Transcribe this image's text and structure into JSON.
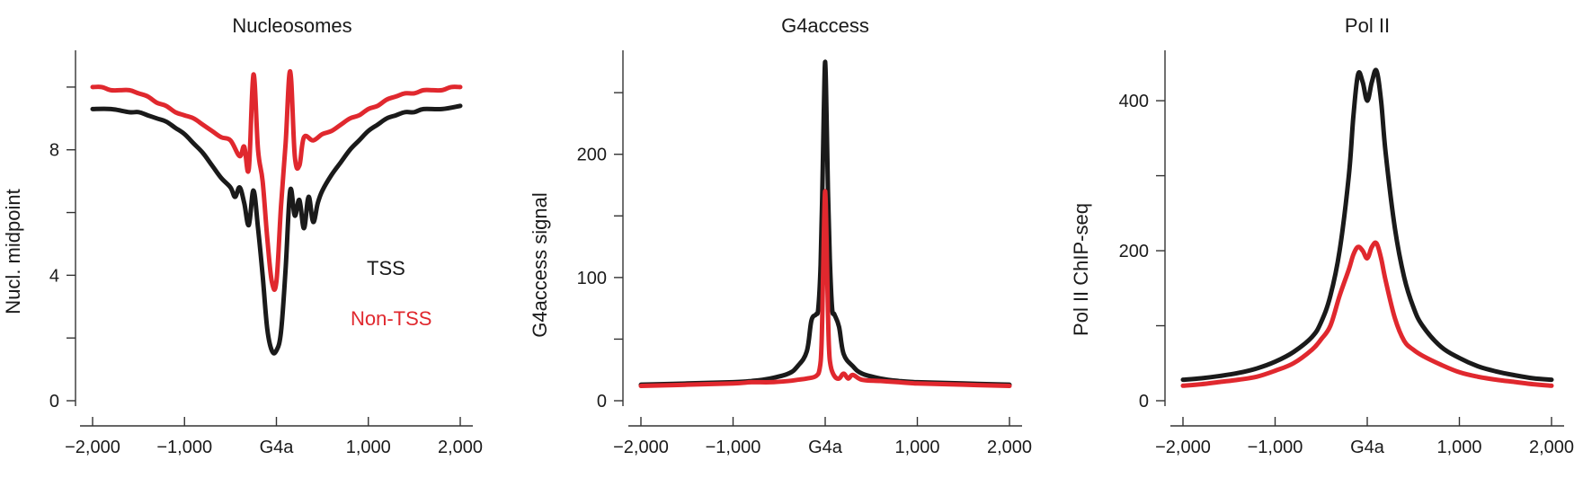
{
  "colors": {
    "tss": "#1a1a1a",
    "non_tss": "#e0282e",
    "axis": "#333333"
  },
  "chart_data": [
    {
      "type": "line",
      "title": "Nucleosomes",
      "xlabel": "",
      "ylabel": "Nucl. midpoint",
      "xlim": [
        -2000,
        2000
      ],
      "ylim": [
        0,
        11
      ],
      "x_ticks": [
        -2000,
        -1000,
        0,
        1000,
        2000
      ],
      "x_tick_labels": [
        "−2,000",
        "−1,000",
        "G4a",
        "1,000",
        "2,000"
      ],
      "y_ticks": [
        0,
        2,
        4,
        6,
        8,
        10
      ],
      "y_tick_labels": [
        "0",
        "",
        "4",
        "",
        "8",
        ""
      ],
      "legend": [
        {
          "label": "TSS",
          "color": "#1a1a1a"
        },
        {
          "label": "Non-TSS",
          "color": "#e0282e"
        }
      ],
      "series": [
        {
          "name": "TSS",
          "color": "#1a1a1a",
          "x": [
            -2000,
            -1800,
            -1600,
            -1500,
            -1400,
            -1300,
            -1200,
            -1100,
            -1000,
            -900,
            -800,
            -700,
            -600,
            -500,
            -450,
            -400,
            -350,
            -300,
            -250,
            -200,
            -150,
            -100,
            -50,
            0,
            50,
            100,
            150,
            200,
            250,
            300,
            350,
            400,
            450,
            500,
            600,
            700,
            800,
            900,
            1000,
            1100,
            1200,
            1300,
            1400,
            1500,
            1600,
            1800,
            2000
          ],
          "y": [
            9.3,
            9.3,
            9.2,
            9.2,
            9.1,
            9.0,
            8.9,
            8.7,
            8.5,
            8.2,
            7.9,
            7.5,
            7.1,
            6.8,
            6.5,
            6.8,
            6.3,
            5.6,
            6.7,
            5.5,
            4.0,
            2.3,
            1.6,
            1.6,
            2.2,
            4.2,
            6.7,
            5.9,
            6.4,
            5.5,
            6.5,
            5.7,
            6.3,
            6.7,
            7.2,
            7.6,
            8.0,
            8.3,
            8.6,
            8.8,
            9.0,
            9.1,
            9.2,
            9.2,
            9.3,
            9.3,
            9.4
          ]
        },
        {
          "name": "Non-TSS",
          "color": "#e0282e",
          "x": [
            -2000,
            -1900,
            -1800,
            -1700,
            -1600,
            -1500,
            -1400,
            -1300,
            -1200,
            -1100,
            -1000,
            -900,
            -800,
            -700,
            -600,
            -500,
            -400,
            -350,
            -300,
            -250,
            -200,
            -150,
            -100,
            -50,
            0,
            50,
            100,
            150,
            200,
            250,
            300,
            400,
            500,
            600,
            700,
            800,
            900,
            1000,
            1100,
            1200,
            1300,
            1400,
            1500,
            1600,
            1700,
            1800,
            1900,
            2000
          ],
          "y": [
            10.0,
            10.0,
            9.9,
            9.9,
            9.9,
            9.8,
            9.7,
            9.5,
            9.4,
            9.2,
            9.1,
            9.0,
            8.8,
            8.6,
            8.4,
            8.3,
            7.8,
            8.1,
            7.4,
            10.4,
            8.0,
            7.0,
            5.2,
            3.8,
            3.8,
            6.2,
            8.2,
            10.5,
            7.8,
            7.5,
            8.4,
            8.3,
            8.5,
            8.6,
            8.8,
            9.0,
            9.1,
            9.3,
            9.4,
            9.6,
            9.7,
            9.8,
            9.8,
            9.9,
            9.9,
            9.9,
            10.0,
            10.0
          ]
        }
      ]
    },
    {
      "type": "line",
      "title": "G4access",
      "xlabel": "",
      "ylabel": "G4access signal",
      "xlim": [
        -2000,
        2000
      ],
      "ylim": [
        0,
        280
      ],
      "x_ticks": [
        -2000,
        -1000,
        0,
        1000,
        2000
      ],
      "x_tick_labels": [
        "−2,000",
        "−1,000",
        "G4a",
        "1,000",
        "2,000"
      ],
      "y_ticks": [
        0,
        50,
        100,
        150,
        200,
        250
      ],
      "y_tick_labels": [
        "0",
        "",
        "100",
        "",
        "200",
        ""
      ],
      "series": [
        {
          "name": "TSS",
          "color": "#1a1a1a",
          "x": [
            -2000,
            -1500,
            -1000,
            -800,
            -600,
            -400,
            -300,
            -200,
            -150,
            -100,
            -75,
            -50,
            -30,
            -15,
            0,
            15,
            30,
            50,
            75,
            100,
            150,
            200,
            300,
            400,
            600,
            800,
            1000,
            1500,
            2000
          ],
          "y": [
            13,
            14,
            15,
            16,
            18,
            22,
            28,
            40,
            65,
            70,
            75,
            110,
            175,
            235,
            275,
            230,
            170,
            115,
            75,
            70,
            60,
            38,
            28,
            22,
            18,
            16,
            15,
            14,
            13
          ]
        },
        {
          "name": "Non-TSS",
          "color": "#e0282e",
          "x": [
            -2000,
            -1500,
            -1000,
            -800,
            -600,
            -400,
            -300,
            -200,
            -100,
            -60,
            -40,
            -25,
            -12,
            0,
            12,
            25,
            40,
            60,
            100,
            150,
            200,
            250,
            300,
            400,
            600,
            800,
            1000,
            1500,
            2000
          ],
          "y": [
            12,
            13,
            14,
            15,
            15,
            16,
            17,
            18,
            20,
            26,
            45,
            95,
            145,
            170,
            140,
            90,
            45,
            28,
            20,
            18,
            22,
            18,
            21,
            17,
            16,
            15,
            14,
            13,
            12
          ]
        }
      ]
    },
    {
      "type": "line",
      "title": "Pol II",
      "xlabel": "",
      "ylabel": "Pol II ChIP-seq",
      "xlim": [
        -2000,
        2000
      ],
      "ylim": [
        0,
        460
      ],
      "x_ticks": [
        -2000,
        -1000,
        0,
        1000,
        2000
      ],
      "x_tick_labels": [
        "−2,000",
        "−1,000",
        "G4a",
        1000,
        "2,000"
      ],
      "y_ticks": [
        0,
        100,
        200,
        300,
        400
      ],
      "y_tick_labels": [
        "0",
        "",
        "200",
        "",
        "400"
      ],
      "series": [
        {
          "name": "TSS",
          "color": "#1a1a1a",
          "x": [
            -2000,
            -1800,
            -1600,
            -1400,
            -1200,
            -1000,
            -800,
            -600,
            -500,
            -400,
            -300,
            -200,
            -150,
            -100,
            -50,
            0,
            50,
            100,
            150,
            200,
            300,
            400,
            500,
            600,
            800,
            1000,
            1200,
            1400,
            1600,
            1800,
            2000
          ],
          "y": [
            28,
            30,
            33,
            37,
            43,
            52,
            65,
            85,
            105,
            140,
            200,
            300,
            380,
            435,
            425,
            400,
            425,
            440,
            400,
            330,
            230,
            165,
            125,
            100,
            72,
            57,
            46,
            39,
            34,
            30,
            28
          ]
        },
        {
          "name": "Non-TSS",
          "color": "#e0282e",
          "x": [
            -2000,
            -1800,
            -1600,
            -1400,
            -1200,
            -1000,
            -800,
            -600,
            -500,
            -400,
            -300,
            -200,
            -150,
            -100,
            -50,
            0,
            50,
            100,
            150,
            200,
            300,
            400,
            500,
            600,
            800,
            1000,
            1200,
            1400,
            1600,
            1800,
            2000
          ],
          "y": [
            20,
            22,
            25,
            28,
            32,
            40,
            50,
            68,
            82,
            100,
            140,
            175,
            195,
            205,
            200,
            190,
            205,
            210,
            190,
            160,
            110,
            80,
            68,
            60,
            48,
            38,
            32,
            28,
            25,
            22,
            20
          ]
        }
      ]
    }
  ]
}
